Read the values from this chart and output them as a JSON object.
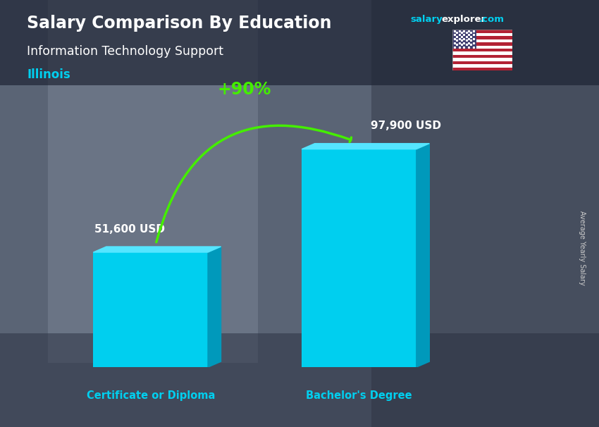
{
  "title_main": "Salary Comparison By Education",
  "subtitle": "Information Technology Support",
  "location": "Illinois",
  "ylabel": "Average Yearly Salary",
  "categories": [
    "Certificate or Diploma",
    "Bachelor's Degree"
  ],
  "values": [
    51600,
    97900
  ],
  "value_labels": [
    "51,600 USD",
    "97,900 USD"
  ],
  "pct_change": "+90%",
  "bar_color_front": "#00CFEF",
  "bar_color_side": "#0099BB",
  "bar_color_top": "#55E5FF",
  "text_color_white": "#FFFFFF",
  "text_color_cyan": "#00CFEF",
  "text_color_green": "#44EE00",
  "arrow_color": "#44EE00",
  "bg_color": "#4a5568",
  "header_bg": "#2d3748",
  "flag_red": "#B22234",
  "flag_blue": "#3C3B6E",
  "flag_white": "#FFFFFF",
  "salary_color": "#00CFEF",
  "explorer_color": "#FFFFFF",
  "dotcom_color": "#00CFEF"
}
